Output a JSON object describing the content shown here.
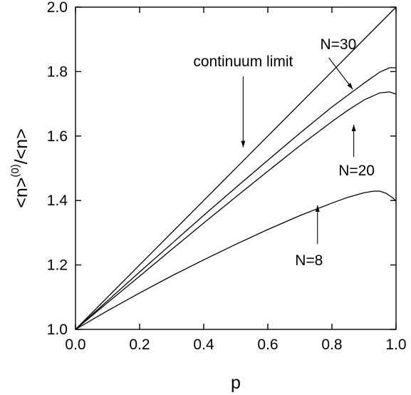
{
  "chart_data": {
    "type": "line",
    "xlabel": "p",
    "ylabel": "<n>",
    "ylabel_superscript": "(0)",
    "ylabel_suffix": "/<n>",
    "xlim": [
      0.0,
      1.0
    ],
    "ylim": [
      1.0,
      2.0
    ],
    "x_ticks": [
      "0.0",
      "0.2",
      "0.4",
      "0.6",
      "0.8",
      "1.0"
    ],
    "y_ticks": [
      "1.0",
      "1.2",
      "1.4",
      "1.6",
      "1.8",
      "2.0"
    ],
    "grid": false,
    "series": [
      {
        "name": "continuum limit",
        "x": [
          0.0,
          0.2,
          0.4,
          0.6,
          0.8,
          1.0
        ],
        "y": [
          1.0,
          1.2,
          1.4,
          1.6,
          1.8,
          2.0
        ]
      },
      {
        "name": "N=30",
        "x": [
          0.0,
          0.1,
          0.2,
          0.3,
          0.4,
          0.5,
          0.6,
          0.7,
          0.8,
          0.85,
          0.9,
          0.95,
          0.98,
          1.0
        ],
        "y": [
          1.0,
          1.089,
          1.178,
          1.266,
          1.354,
          1.44,
          1.525,
          1.609,
          1.69,
          1.727,
          1.764,
          1.799,
          1.812,
          1.812
        ]
      },
      {
        "name": "N=20",
        "x": [
          0.0,
          0.1,
          0.2,
          0.3,
          0.4,
          0.5,
          0.6,
          0.7,
          0.8,
          0.85,
          0.9,
          0.95,
          0.98,
          1.0
        ],
        "y": [
          1.0,
          1.083,
          1.165,
          1.248,
          1.33,
          1.411,
          1.491,
          1.57,
          1.645,
          1.68,
          1.712,
          1.734,
          1.737,
          1.73
        ]
      },
      {
        "name": "N=8",
        "x": [
          0.0,
          0.1,
          0.2,
          0.3,
          0.4,
          0.5,
          0.6,
          0.7,
          0.8,
          0.85,
          0.9,
          0.93,
          0.95,
          0.97,
          0.99,
          1.0
        ],
        "y": [
          1.0,
          1.058,
          1.113,
          1.166,
          1.216,
          1.264,
          1.31,
          1.353,
          1.392,
          1.41,
          1.424,
          1.429,
          1.429,
          1.422,
          1.408,
          1.398
        ]
      }
    ],
    "annotations": [
      {
        "text": "continuum limit",
        "arrow_from": [
          0.523,
          1.785
        ],
        "arrow_to": [
          0.523,
          1.565
        ]
      },
      {
        "text": "N=30",
        "arrow_from": [
          0.79,
          1.843
        ],
        "arrow_to": [
          0.865,
          1.745
        ]
      },
      {
        "text": "N=20",
        "arrow_from": [
          0.868,
          1.535
        ],
        "arrow_to": [
          0.868,
          1.635
        ]
      },
      {
        "text": "N=8",
        "arrow_from": [
          0.755,
          1.265
        ],
        "arrow_to": [
          0.755,
          1.385
        ]
      }
    ]
  }
}
